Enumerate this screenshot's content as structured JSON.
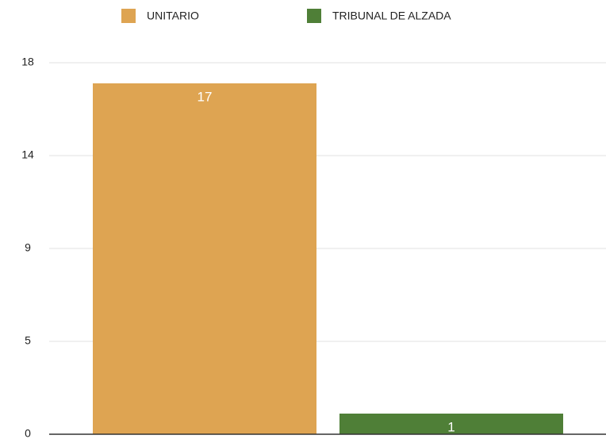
{
  "chart_data": {
    "type": "bar",
    "categories": [
      null
    ],
    "series": [
      {
        "name": "UNITARIO",
        "color": "#dea452",
        "values": [
          17
        ]
      },
      {
        "name": "TRIBUNAL DE ALZADA",
        "color": "#4f7f37",
        "values": [
          1
        ]
      }
    ],
    "ylim": [
      0,
      18
    ],
    "yticks": [
      0,
      {
        "value": 4.5,
        "label": "5"
      },
      9,
      {
        "value": 13.5,
        "label": "14"
      },
      18
    ],
    "grid": true,
    "legend": "top"
  }
}
